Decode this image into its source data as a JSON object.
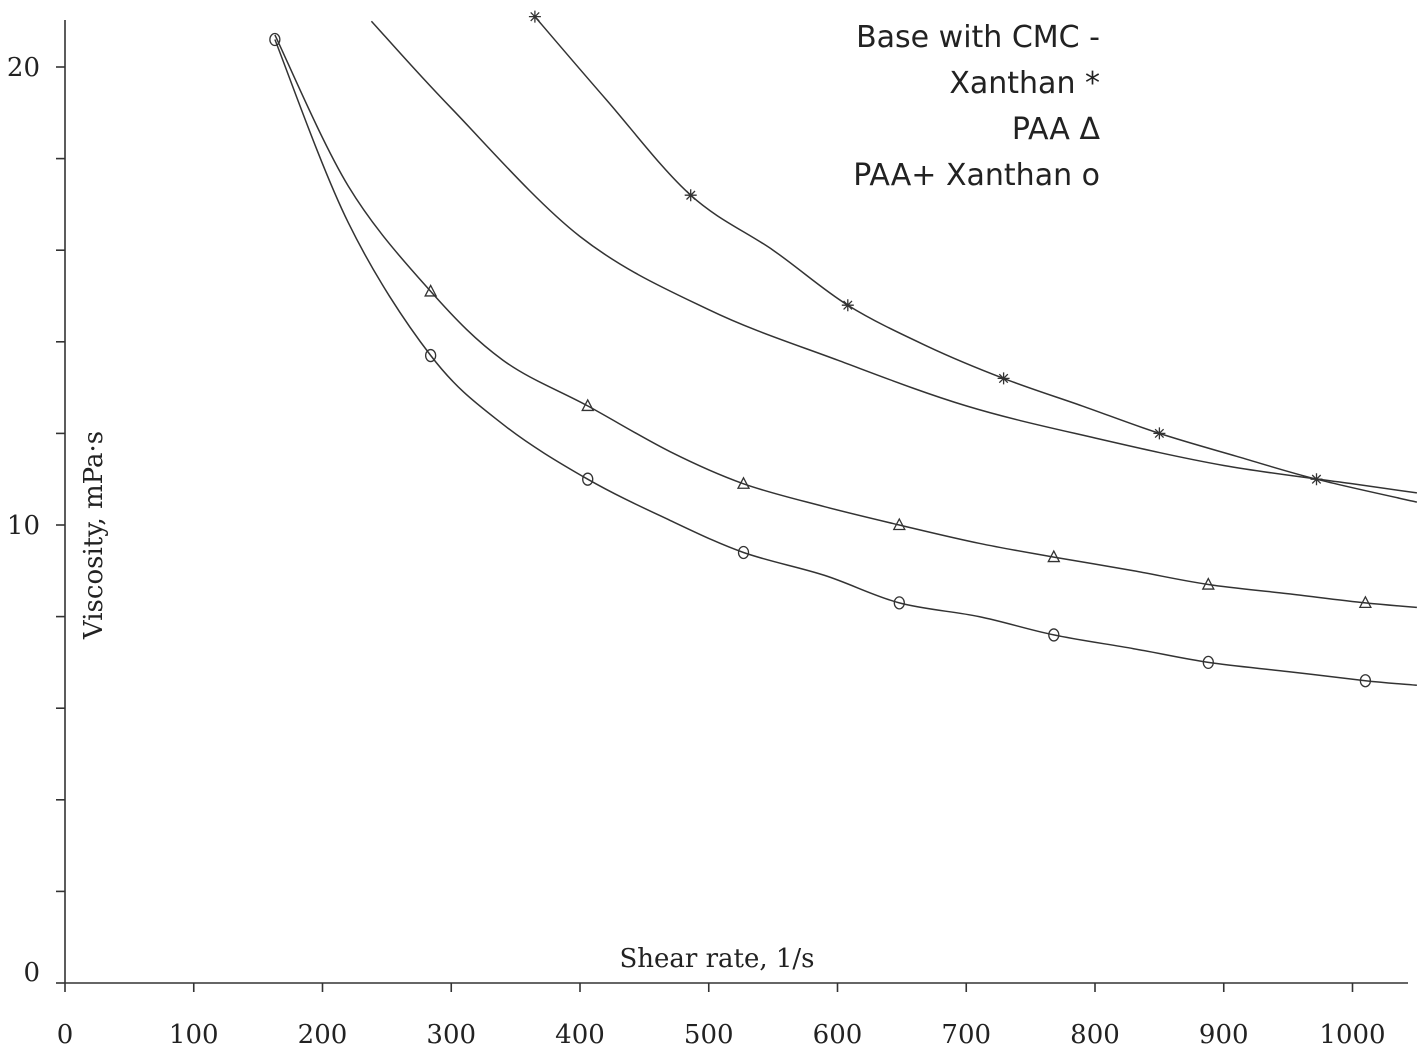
{
  "chart_data": {
    "type": "line",
    "title": "",
    "xlabel": "Shear rate, 1/s",
    "ylabel": "Viscosity, mPa·s",
    "xlim": [
      0,
      1050
    ],
    "ylim": [
      0,
      21
    ],
    "xticks": [
      0,
      100,
      200,
      300,
      400,
      500,
      600,
      700,
      800,
      900,
      1000
    ],
    "xtick_labels": [
      "0",
      "100",
      "200",
      "300",
      "400",
      "500",
      "600",
      "700",
      "800",
      "900",
      "1000"
    ],
    "yticks": [
      0,
      2,
      4,
      6,
      8,
      10,
      12,
      14,
      16,
      18,
      20
    ],
    "ytick_labels": [
      "0",
      "",
      "",
      "",
      "",
      "10",
      "",
      "",
      "",
      "",
      "20"
    ],
    "grid": false,
    "legend_position": "top-right",
    "legend_lines": [
      "Base with CMC -",
      "Xanthan *",
      "PAA Δ",
      "PAA+ Xanthan o"
    ],
    "series": [
      {
        "name": "Base with CMC",
        "marker": "none",
        "curve_x": [
          238,
          300,
          400,
          500,
          600,
          700,
          800,
          900,
          1000,
          1050
        ],
        "curve_y": [
          21.0,
          19.1,
          16.3,
          14.7,
          13.6,
          12.6,
          11.9,
          11.3,
          10.9,
          10.7
        ],
        "points_x": [],
        "points_y": []
      },
      {
        "name": "Xanthan",
        "marker": "star",
        "curve_x": [
          365,
          420,
          486,
          550,
          608,
          670,
          729,
          790,
          850,
          910,
          972,
          1050
        ],
        "curve_y": [
          21.1,
          19.3,
          17.2,
          16.0,
          14.8,
          13.9,
          13.2,
          12.6,
          12.0,
          11.5,
          11.0,
          10.5
        ],
        "points_x": [
          365,
          486,
          608,
          729,
          850,
          972
        ],
        "points_y": [
          21.1,
          17.2,
          14.8,
          13.2,
          12.0,
          11.0
        ]
      },
      {
        "name": "PAA",
        "marker": "triangle",
        "curve_x": [
          163,
          220,
          284,
          340,
          406,
          470,
          527,
          590,
          648,
          710,
          768,
          830,
          888,
          950,
          1010,
          1050
        ],
        "curve_y": [
          20.7,
          17.4,
          15.1,
          13.6,
          12.6,
          11.6,
          10.9,
          10.4,
          10.0,
          9.6,
          9.3,
          9.0,
          8.7,
          8.5,
          8.3,
          8.2
        ],
        "points_x": [
          284,
          406,
          527,
          648,
          768,
          888,
          1010
        ],
        "points_y": [
          15.1,
          12.6,
          10.9,
          10.0,
          9.3,
          8.7,
          8.3
        ]
      },
      {
        "name": "PAA+ Xanthan",
        "marker": "circle",
        "curve_x": [
          163,
          220,
          284,
          340,
          406,
          470,
          527,
          590,
          648,
          710,
          768,
          830,
          888,
          950,
          1010,
          1050
        ],
        "curve_y": [
          20.6,
          16.6,
          13.7,
          12.2,
          11.0,
          10.1,
          9.4,
          8.9,
          8.3,
          8.0,
          7.6,
          7.3,
          7.0,
          6.8,
          6.6,
          6.5
        ],
        "points_x": [
          163,
          284,
          406,
          527,
          648,
          768,
          888,
          1010
        ],
        "points_y": [
          20.6,
          13.7,
          11.0,
          9.4,
          8.3,
          7.6,
          7.0,
          6.6
        ]
      }
    ]
  }
}
